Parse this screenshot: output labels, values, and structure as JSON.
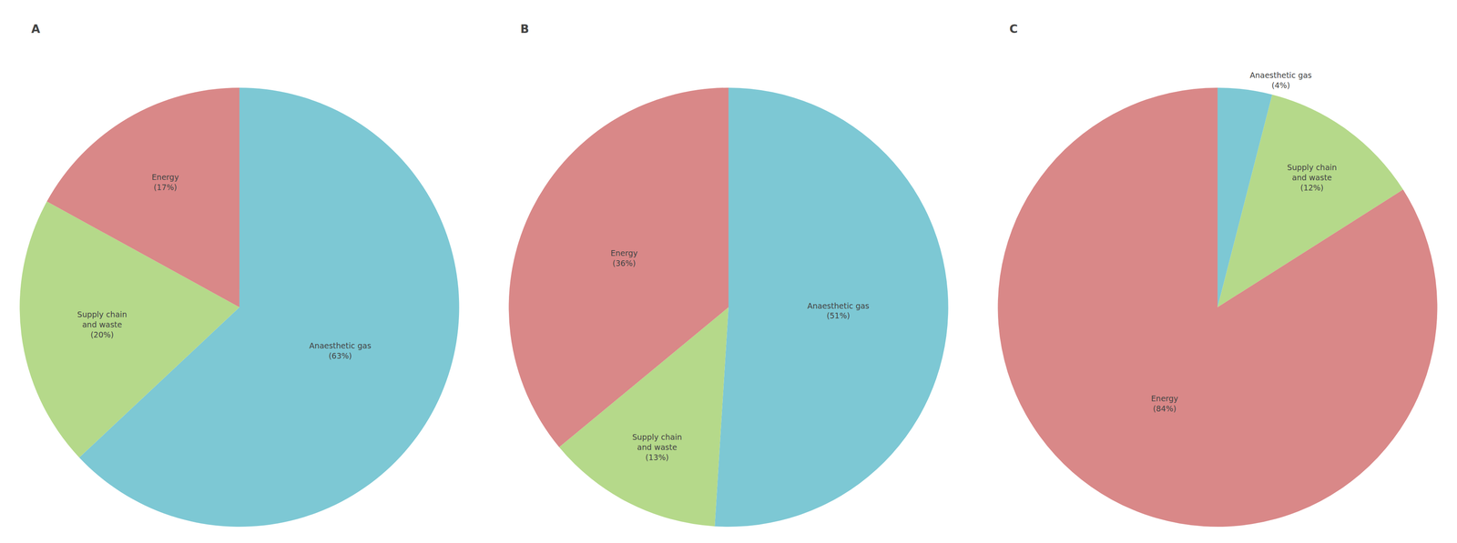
{
  "chart_data": [
    {
      "type": "pie",
      "title": "A",
      "categories": [
        "Anaesthetic gas\n(63%)",
        "Supply chain\nand waste\n(20%)",
        "Energy\n(17%)"
      ],
      "values": [
        63,
        20,
        17
      ],
      "colors": [
        "#7DC8D4",
        "#B5D98A",
        "#D98888"
      ]
    },
    {
      "type": "pie",
      "title": "B",
      "categories": [
        "Anaesthetic gas\n(51%)",
        "Supply chain\nand waste\n(13%)",
        "Energy\n(36%)"
      ],
      "values": [
        51,
        13,
        36
      ],
      "colors": [
        "#7DC8D4",
        "#B5D98A",
        "#D98888"
      ]
    },
    {
      "type": "pie",
      "title": "C",
      "categories": [
        "Anaesthetic gas\n(4%)",
        "Supply chain\nand waste\n(12%)",
        "Energy\n(84%)"
      ],
      "values": [
        4,
        12,
        84
      ],
      "colors": [
        "#7DC8D4",
        "#B5D98A",
        "#D98888"
      ]
    }
  ]
}
